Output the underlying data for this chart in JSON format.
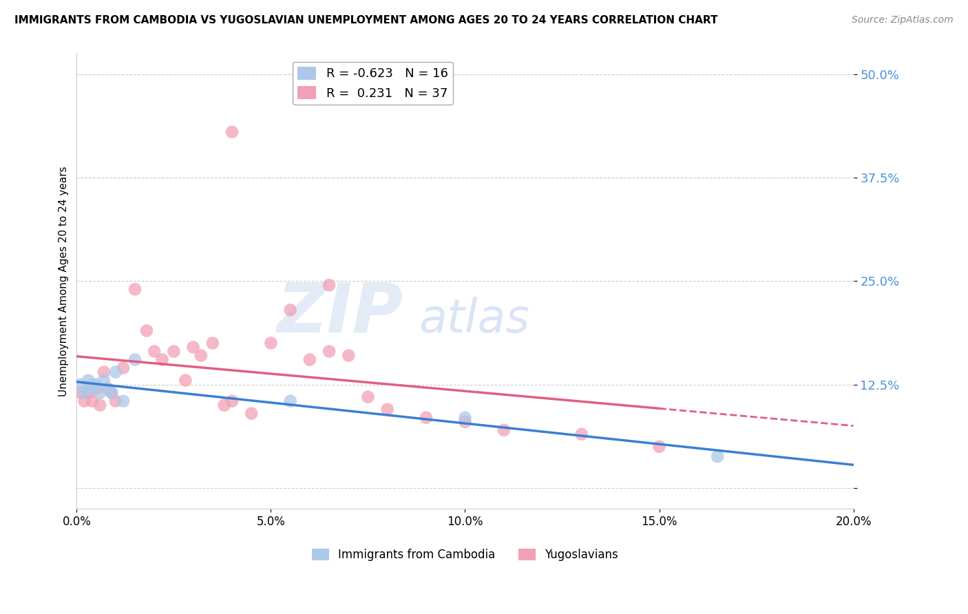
{
  "title": "IMMIGRANTS FROM CAMBODIA VS YUGOSLAVIAN UNEMPLOYMENT AMONG AGES 20 TO 24 YEARS CORRELATION CHART",
  "source": "Source: ZipAtlas.com",
  "ylabel": "Unemployment Among Ages 20 to 24 years",
  "xlim": [
    0.0,
    0.2
  ],
  "ylim": [
    -0.025,
    0.525
  ],
  "yticks": [
    0.0,
    0.125,
    0.25,
    0.375,
    0.5
  ],
  "ytick_labels": [
    "",
    "12.5%",
    "25.0%",
    "37.5%",
    "50.0%"
  ],
  "xticks": [
    0.0,
    0.05,
    0.1,
    0.15,
    0.2
  ],
  "xtick_labels": [
    "0.0%",
    "5.0%",
    "10.0%",
    "15.0%",
    "20.0%"
  ],
  "legend1_r": "-0.623",
  "legend1_n": "16",
  "legend2_r": "0.231",
  "legend2_n": "37",
  "blue_color": "#adc8e8",
  "pink_color": "#f2a0b5",
  "blue_line_color": "#3a7fd5",
  "pink_line_color": "#e06080",
  "watermark_zip_color": "#d0dff0",
  "watermark_atlas_color": "#c0d5ef",
  "blue_scatter_x": [
    0.001,
    0.002,
    0.003,
    0.003,
    0.004,
    0.005,
    0.006,
    0.007,
    0.008,
    0.009,
    0.01,
    0.012,
    0.015,
    0.055,
    0.1,
    0.165
  ],
  "blue_scatter_y": [
    0.125,
    0.115,
    0.13,
    0.12,
    0.125,
    0.125,
    0.115,
    0.13,
    0.12,
    0.115,
    0.14,
    0.105,
    0.155,
    0.105,
    0.085,
    0.038
  ],
  "pink_scatter_x": [
    0.001,
    0.002,
    0.003,
    0.004,
    0.005,
    0.006,
    0.007,
    0.008,
    0.009,
    0.01,
    0.012,
    0.015,
    0.018,
    0.02,
    0.022,
    0.025,
    0.028,
    0.03,
    0.032,
    0.035,
    0.038,
    0.04,
    0.045,
    0.05,
    0.055,
    0.06,
    0.065,
    0.07,
    0.075,
    0.08,
    0.09,
    0.1,
    0.11,
    0.13,
    0.15,
    0.04,
    0.065
  ],
  "pink_scatter_y": [
    0.115,
    0.105,
    0.115,
    0.105,
    0.12,
    0.1,
    0.14,
    0.12,
    0.115,
    0.105,
    0.145,
    0.24,
    0.19,
    0.165,
    0.155,
    0.165,
    0.13,
    0.17,
    0.16,
    0.175,
    0.1,
    0.105,
    0.09,
    0.175,
    0.215,
    0.155,
    0.165,
    0.16,
    0.11,
    0.095,
    0.085,
    0.08,
    0.07,
    0.065,
    0.05,
    0.43,
    0.245
  ]
}
